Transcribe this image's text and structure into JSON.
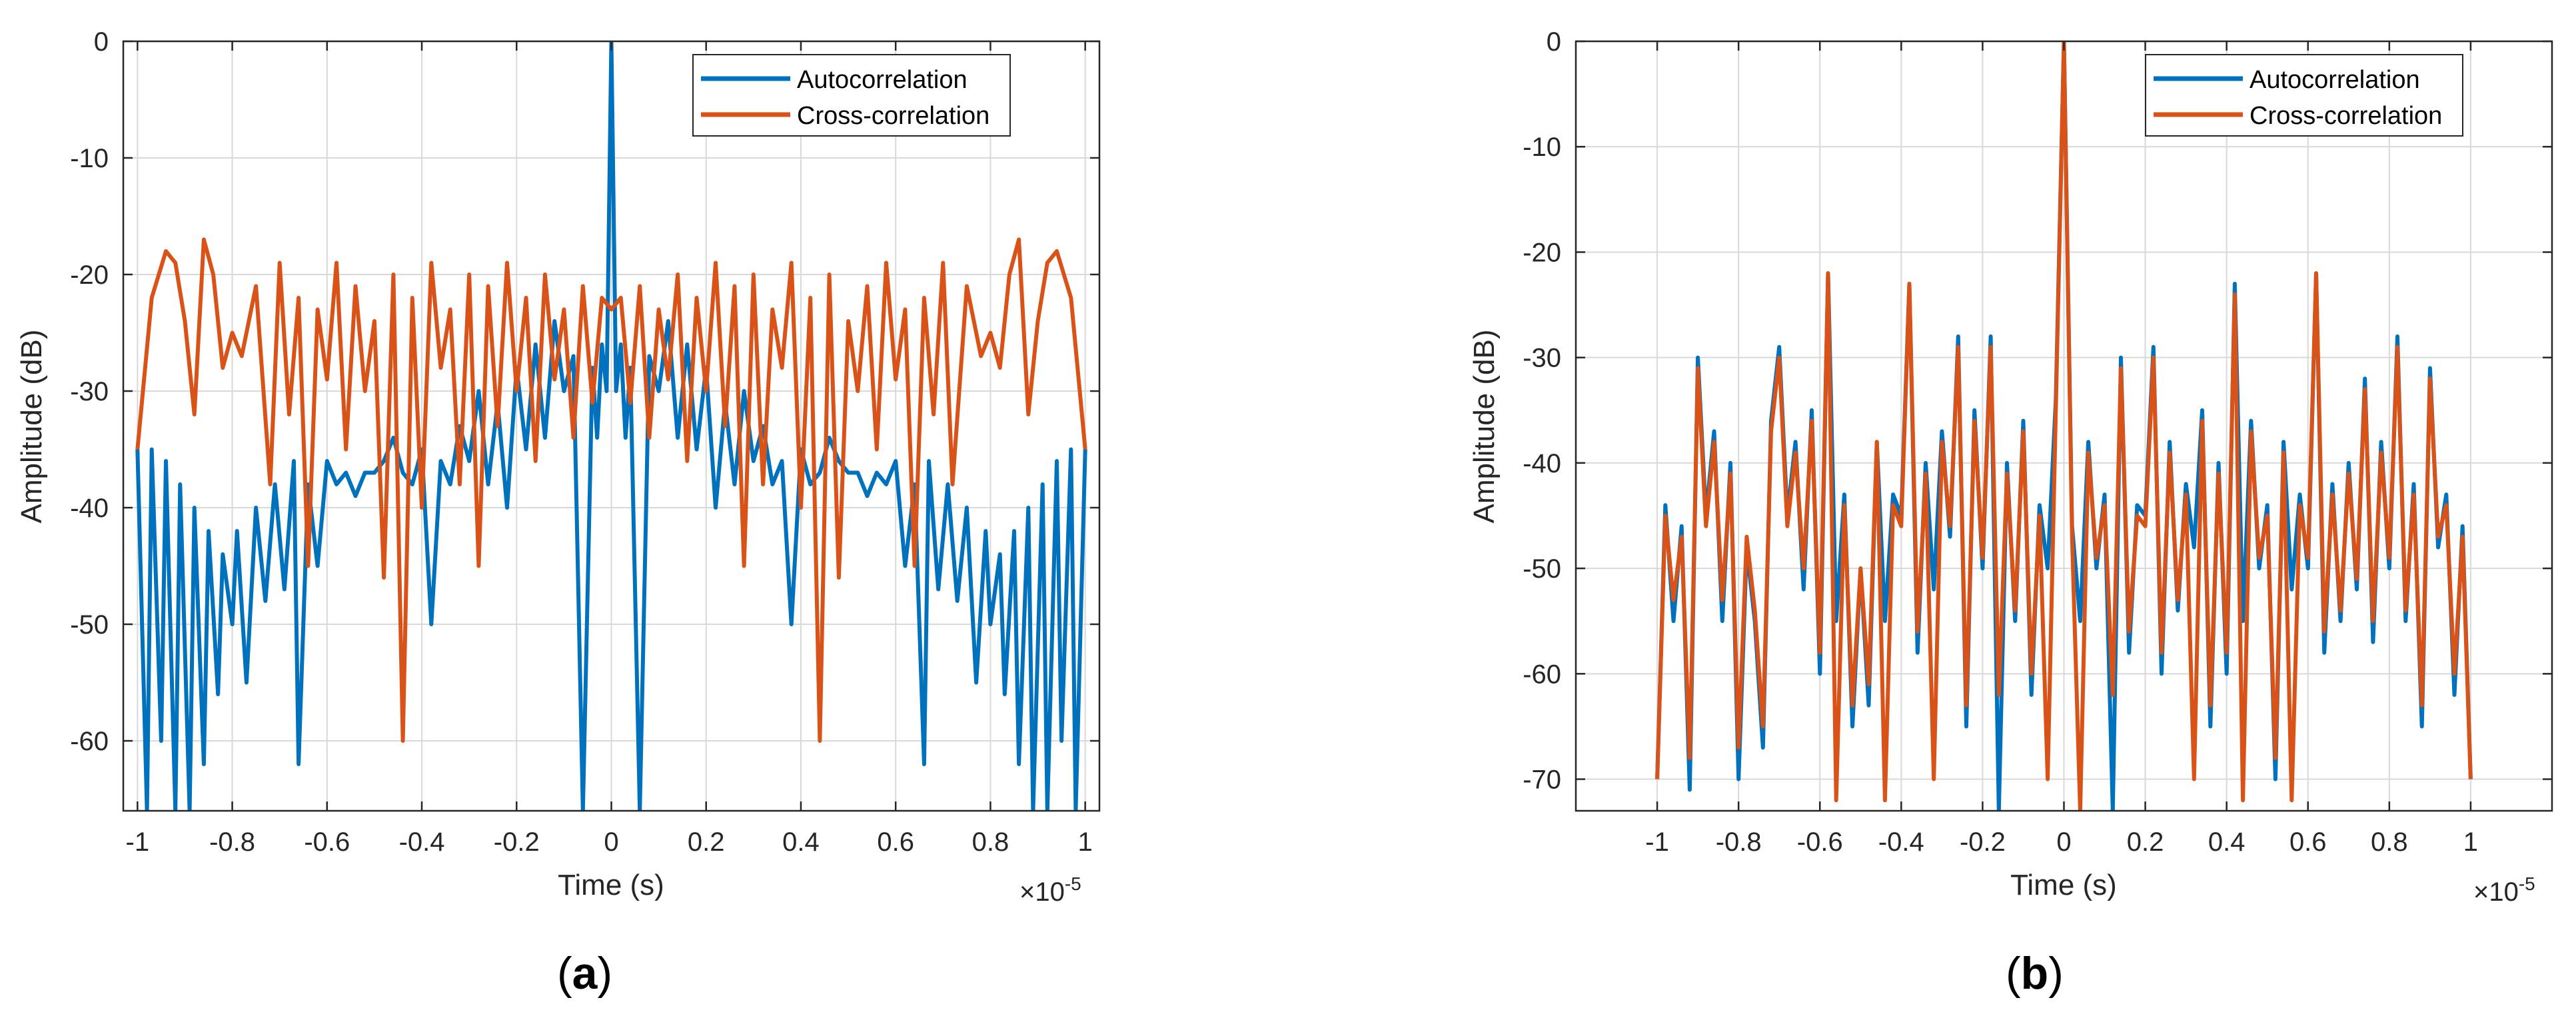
{
  "colors": {
    "autocorrelation": "#0072BD",
    "cross_correlation": "#D95319",
    "grid": "#d9d9d9",
    "axis": "#262626"
  },
  "chart_data": [
    {
      "type": "line",
      "panel_label": "a",
      "xlabel": "Time (s)",
      "ylabel": "Amplitude (dB)",
      "x_exponent_label": "×10",
      "x_exponent": "-5",
      "xlim": [
        -1.03,
        1.03
      ],
      "ylim": [
        -66,
        0
      ],
      "xticks": [
        -1,
        -0.8,
        -0.6,
        -0.4,
        -0.2,
        0,
        0.2,
        0.4,
        0.6,
        0.8,
        1
      ],
      "xtick_labels": [
        "-1",
        "-0.8",
        "-0.6",
        "-0.4",
        "-0.2",
        "0",
        "0.2",
        "0.4",
        "0.6",
        "0.8",
        "1"
      ],
      "yticks": [
        0,
        -10,
        -20,
        -30,
        -40,
        -50,
        -60
      ],
      "ytick_labels": [
        "0",
        "-10",
        "-20",
        "-30",
        "-40",
        "-50",
        "-60"
      ],
      "grid": true,
      "legend_position": "top-right",
      "series": [
        {
          "name": "Autocorrelation",
          "x": [
            -1.0,
            -0.98,
            -0.97,
            -0.95,
            -0.94,
            -0.92,
            -0.91,
            -0.89,
            -0.88,
            -0.86,
            -0.85,
            -0.83,
            -0.82,
            -0.8,
            -0.79,
            -0.77,
            -0.75,
            -0.73,
            -0.71,
            -0.69,
            -0.67,
            -0.66,
            -0.64,
            -0.62,
            -0.6,
            -0.58,
            -0.56,
            -0.54,
            -0.52,
            -0.5,
            -0.48,
            -0.46,
            -0.44,
            -0.42,
            -0.4,
            -0.38,
            -0.36,
            -0.34,
            -0.32,
            -0.3,
            -0.28,
            -0.26,
            -0.24,
            -0.22,
            -0.2,
            -0.18,
            -0.16,
            -0.14,
            -0.12,
            -0.1,
            -0.08,
            -0.06,
            -0.04,
            -0.03,
            -0.02,
            -0.01,
            0.0,
            0.01,
            0.02,
            0.03,
            0.04,
            0.06,
            0.08,
            0.1,
            0.12,
            0.14,
            0.16,
            0.18,
            0.2,
            0.22,
            0.24,
            0.26,
            0.28,
            0.3,
            0.32,
            0.34,
            0.36,
            0.38,
            0.4,
            0.42,
            0.44,
            0.46,
            0.48,
            0.5,
            0.52,
            0.54,
            0.56,
            0.58,
            0.6,
            0.62,
            0.64,
            0.66,
            0.67,
            0.69,
            0.71,
            0.73,
            0.75,
            0.77,
            0.79,
            0.8,
            0.82,
            0.83,
            0.85,
            0.86,
            0.88,
            0.89,
            0.91,
            0.92,
            0.94,
            0.95,
            0.97,
            0.98,
            1.0
          ],
          "y": [
            -35,
            -66,
            -35,
            -60,
            -36,
            -66,
            -38,
            -66,
            -40,
            -62,
            -42,
            -56,
            -44,
            -50,
            -42,
            -55,
            -40,
            -48,
            -38,
            -47,
            -36,
            -62,
            -38,
            -45,
            -36,
            -38,
            -37,
            -39,
            -37,
            -37,
            -36,
            -34,
            -37,
            -38,
            -35,
            -50,
            -36,
            -38,
            -33,
            -36,
            -30,
            -38,
            -31,
            -40,
            -28,
            -35,
            -26,
            -34,
            -24,
            -30,
            -27,
            -66,
            -28,
            -34,
            -26,
            -30,
            0,
            -30,
            -26,
            -34,
            -28,
            -66,
            -27,
            -30,
            -24,
            -34,
            -26,
            -35,
            -28,
            -40,
            -31,
            -38,
            -30,
            -36,
            -33,
            -38,
            -36,
            -50,
            -35,
            -38,
            -37,
            -34,
            -36,
            -37,
            -37,
            -39,
            -37,
            -38,
            -36,
            -45,
            -38,
            -62,
            -36,
            -47,
            -38,
            -48,
            -40,
            -55,
            -42,
            -50,
            -44,
            -56,
            -42,
            -62,
            -40,
            -66,
            -38,
            -66,
            -36,
            -60,
            -35,
            -66,
            -35
          ]
        },
        {
          "name": "Cross-correlation",
          "x": [
            -1.0,
            -0.97,
            -0.94,
            -0.92,
            -0.9,
            -0.88,
            -0.86,
            -0.84,
            -0.82,
            -0.8,
            -0.78,
            -0.75,
            -0.72,
            -0.7,
            -0.68,
            -0.66,
            -0.64,
            -0.62,
            -0.6,
            -0.58,
            -0.56,
            -0.54,
            -0.52,
            -0.5,
            -0.48,
            -0.46,
            -0.44,
            -0.42,
            -0.4,
            -0.38,
            -0.36,
            -0.34,
            -0.32,
            -0.3,
            -0.28,
            -0.26,
            -0.24,
            -0.22,
            -0.2,
            -0.18,
            -0.16,
            -0.14,
            -0.12,
            -0.1,
            -0.08,
            -0.06,
            -0.04,
            -0.02,
            0.0,
            0.02,
            0.04,
            0.06,
            0.08,
            0.1,
            0.12,
            0.14,
            0.16,
            0.18,
            0.2,
            0.22,
            0.24,
            0.26,
            0.28,
            0.3,
            0.32,
            0.34,
            0.36,
            0.38,
            0.4,
            0.42,
            0.44,
            0.46,
            0.48,
            0.5,
            0.52,
            0.54,
            0.56,
            0.58,
            0.6,
            0.62,
            0.64,
            0.66,
            0.68,
            0.7,
            0.72,
            0.75,
            0.78,
            0.8,
            0.82,
            0.84,
            0.86,
            0.88,
            0.9,
            0.92,
            0.94,
            0.97,
            1.0
          ],
          "y": [
            -35,
            -22,
            -18,
            -19,
            -24,
            -32,
            -17,
            -20,
            -28,
            -25,
            -27,
            -21,
            -38,
            -19,
            -32,
            -22,
            -45,
            -23,
            -29,
            -19,
            -35,
            -21,
            -30,
            -24,
            -46,
            -20,
            -60,
            -22,
            -40,
            -19,
            -28,
            -23,
            -38,
            -20,
            -45,
            -21,
            -33,
            -19,
            -30,
            -22,
            -36,
            -20,
            -29,
            -23,
            -34,
            -21,
            -31,
            -22,
            -23,
            -22,
            -31,
            -21,
            -34,
            -23,
            -29,
            -20,
            -36,
            -22,
            -30,
            -19,
            -33,
            -21,
            -45,
            -20,
            -38,
            -23,
            -28,
            -19,
            -40,
            -22,
            -60,
            -20,
            -46,
            -24,
            -30,
            -21,
            -35,
            -19,
            -29,
            -23,
            -45,
            -22,
            -32,
            -19,
            -38,
            -21,
            -27,
            -25,
            -28,
            -20,
            -17,
            -32,
            -24,
            -19,
            -18,
            -22,
            -35
          ]
        }
      ]
    },
    {
      "type": "line",
      "panel_label": "b",
      "xlabel": "Time (s)",
      "ylabel": "Amplitude (dB)",
      "x_exponent_label": "×10",
      "x_exponent": "-5",
      "xlim": [
        -1.2,
        1.2
      ],
      "ylim": [
        -73,
        0
      ],
      "xticks": [
        -1,
        -0.8,
        -0.6,
        -0.4,
        -0.2,
        0,
        0.2,
        0.4,
        0.6,
        0.8,
        1
      ],
      "xtick_labels": [
        "-1",
        "-0.8",
        "-0.6",
        "-0.4",
        "-0.2",
        "0",
        "0.2",
        "0.4",
        "0.6",
        "0.8",
        "1"
      ],
      "yticks": [
        0,
        -10,
        -20,
        -30,
        -40,
        -50,
        -60,
        -70
      ],
      "ytick_labels": [
        "0",
        "-10",
        "-20",
        "-30",
        "-40",
        "-50",
        "-60",
        "-70"
      ],
      "grid": true,
      "legend_position": "top-right",
      "series": [
        {
          "name": "Autocorrelation",
          "x": [
            -1.0,
            -0.98,
            -0.96,
            -0.94,
            -0.92,
            -0.9,
            -0.88,
            -0.86,
            -0.84,
            -0.82,
            -0.8,
            -0.78,
            -0.76,
            -0.74,
            -0.72,
            -0.7,
            -0.68,
            -0.66,
            -0.64,
            -0.62,
            -0.6,
            -0.58,
            -0.56,
            -0.54,
            -0.52,
            -0.5,
            -0.48,
            -0.46,
            -0.44,
            -0.42,
            -0.4,
            -0.38,
            -0.36,
            -0.34,
            -0.32,
            -0.3,
            -0.28,
            -0.26,
            -0.24,
            -0.22,
            -0.2,
            -0.18,
            -0.16,
            -0.14,
            -0.12,
            -0.1,
            -0.08,
            -0.06,
            -0.04,
            -0.02,
            0.0,
            0.02,
            0.04,
            0.06,
            0.08,
            0.1,
            0.12,
            0.14,
            0.16,
            0.18,
            0.2,
            0.22,
            0.24,
            0.26,
            0.28,
            0.3,
            0.32,
            0.34,
            0.36,
            0.38,
            0.4,
            0.42,
            0.44,
            0.46,
            0.48,
            0.5,
            0.52,
            0.54,
            0.56,
            0.58,
            0.6,
            0.62,
            0.64,
            0.66,
            0.68,
            0.7,
            0.72,
            0.74,
            0.76,
            0.78,
            0.8,
            0.82,
            0.84,
            0.86,
            0.88,
            0.9,
            0.92,
            0.94,
            0.96,
            0.98,
            1.0
          ],
          "y": [
            -70,
            -44,
            -55,
            -46,
            -71,
            -30,
            -45,
            -37,
            -55,
            -40,
            -70,
            -48,
            -55,
            -67,
            -36,
            -29,
            -45,
            -38,
            -52,
            -35,
            -60,
            -22,
            -55,
            -43,
            -65,
            -50,
            -63,
            -38,
            -55,
            -43,
            -45,
            -23,
            -58,
            -40,
            -52,
            -37,
            -47,
            -28,
            -65,
            -35,
            -50,
            -28,
            -73,
            -40,
            -55,
            -36,
            -62,
            -44,
            -50,
            -34,
            0,
            -46,
            -55,
            -38,
            -50,
            -43,
            -73,
            -30,
            -58,
            -44,
            -45,
            -29,
            -60,
            -38,
            -54,
            -42,
            -48,
            -35,
            -65,
            -40,
            -60,
            -23,
            -55,
            -36,
            -50,
            -44,
            -70,
            -38,
            -52,
            -43,
            -50,
            -22,
            -58,
            -42,
            -55,
            -40,
            -52,
            -32,
            -57,
            -38,
            -50,
            -28,
            -55,
            -42,
            -65,
            -31,
            -48,
            -43,
            -62,
            -46,
            -70
          ]
        },
        {
          "name": "Cross-correlation",
          "x": [
            -1.0,
            -0.98,
            -0.96,
            -0.94,
            -0.92,
            -0.9,
            -0.88,
            -0.86,
            -0.84,
            -0.82,
            -0.8,
            -0.78,
            -0.76,
            -0.74,
            -0.72,
            -0.7,
            -0.68,
            -0.66,
            -0.64,
            -0.62,
            -0.6,
            -0.58,
            -0.56,
            -0.54,
            -0.52,
            -0.5,
            -0.48,
            -0.46,
            -0.44,
            -0.42,
            -0.4,
            -0.38,
            -0.36,
            -0.34,
            -0.32,
            -0.3,
            -0.28,
            -0.26,
            -0.24,
            -0.22,
            -0.2,
            -0.18,
            -0.16,
            -0.14,
            -0.12,
            -0.1,
            -0.08,
            -0.06,
            -0.04,
            -0.02,
            0.0,
            0.02,
            0.04,
            0.06,
            0.08,
            0.1,
            0.12,
            0.14,
            0.16,
            0.18,
            0.2,
            0.22,
            0.24,
            0.26,
            0.28,
            0.3,
            0.32,
            0.34,
            0.36,
            0.38,
            0.4,
            0.42,
            0.44,
            0.46,
            0.48,
            0.5,
            0.52,
            0.54,
            0.56,
            0.58,
            0.6,
            0.62,
            0.64,
            0.66,
            0.68,
            0.7,
            0.72,
            0.74,
            0.76,
            0.78,
            0.8,
            0.82,
            0.84,
            0.86,
            0.88,
            0.9,
            0.92,
            0.94,
            0.96,
            0.98,
            1.0
          ],
          "y": [
            -70,
            -45,
            -53,
            -47,
            -68,
            -31,
            -46,
            -38,
            -53,
            -41,
            -67,
            -47,
            -54,
            -65,
            -37,
            -30,
            -46,
            -39,
            -50,
            -36,
            -58,
            -22,
            -72,
            -44,
            -63,
            -50,
            -61,
            -38,
            -72,
            -44,
            -46,
            -23,
            -56,
            -41,
            -70,
            -38,
            -46,
            -29,
            -63,
            -36,
            -49,
            -29,
            -62,
            -41,
            -54,
            -37,
            -60,
            -45,
            -70,
            -35,
            0,
            -47,
            -73,
            -39,
            -49,
            -44,
            -62,
            -31,
            -56,
            -45,
            -46,
            -30,
            -58,
            -39,
            -53,
            -43,
            -70,
            -36,
            -63,
            -41,
            -58,
            -24,
            -72,
            -37,
            -49,
            -45,
            -68,
            -39,
            -72,
            -44,
            -49,
            -22,
            -56,
            -43,
            -54,
            -41,
            -51,
            -33,
            -55,
            -39,
            -49,
            -29,
            -54,
            -43,
            -63,
            -32,
            -47,
            -44,
            -60,
            -47,
            -70
          ]
        }
      ]
    }
  ]
}
